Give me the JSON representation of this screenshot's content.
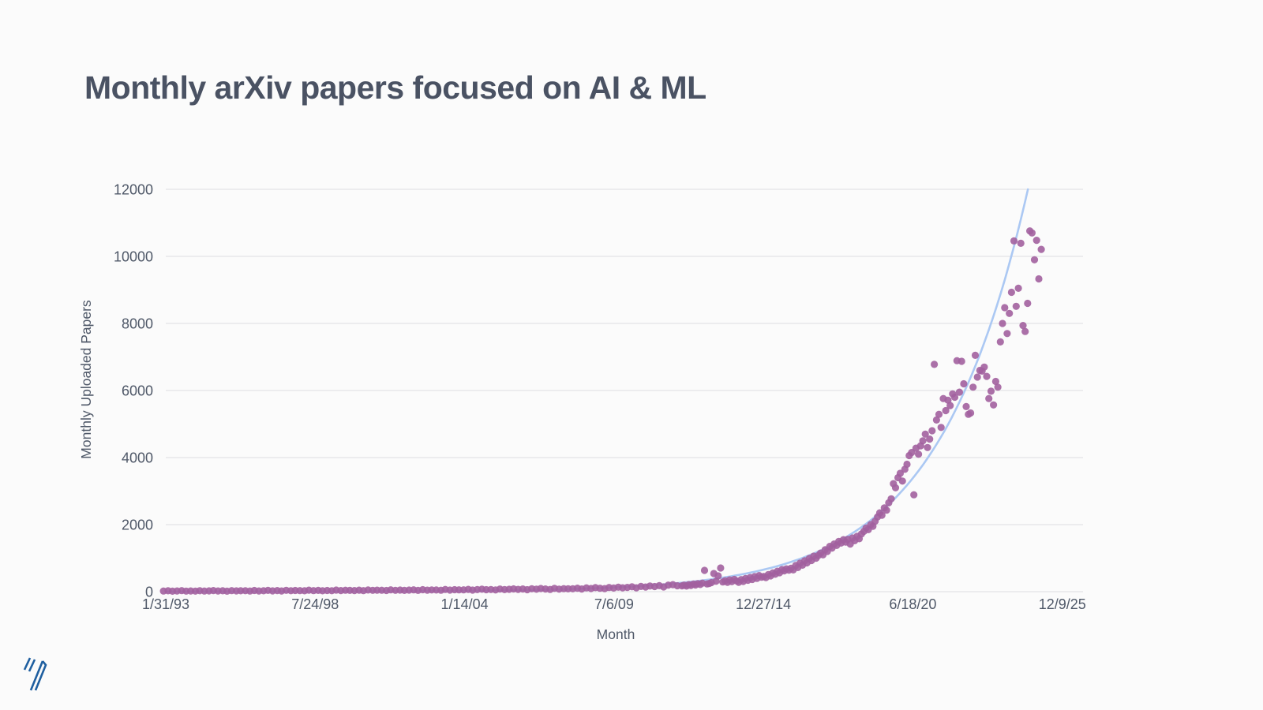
{
  "header": {
    "title": "Monthly arXiv papers focused on AI & ML"
  },
  "colors": {
    "background": "#fbfbfb",
    "title_text": "#4a5263",
    "axis_text": "#4f5868",
    "grid": "#e3e3e7",
    "dot": "#a2619e",
    "trend_line": "#abc8f3",
    "logo_blue": "#1f5fa0"
  },
  "logo": {
    "name": "brand-logo"
  },
  "chart_data": {
    "type": "scatter",
    "title": "Monthly arXiv papers focused on AI & ML",
    "xlabel": "Month",
    "ylabel": "Monthly Uploaded Papers",
    "grid": true,
    "legend": false,
    "x_range": [
      1993.085,
      2026.7
    ],
    "y_range": [
      0,
      12000
    ],
    "x_ticks": [
      {
        "label": "1/31/93",
        "t": 1993.085
      },
      {
        "label": "7/24/98",
        "t": 1998.561
      },
      {
        "label": "1/14/04",
        "t": 2004.037
      },
      {
        "label": "7/6/09",
        "t": 2009.512
      },
      {
        "label": "12/27/14",
        "t": 2014.988
      },
      {
        "label": "6/18/20",
        "t": 2020.464
      },
      {
        "label": "12/9/25",
        "t": 2025.94
      }
    ],
    "y_ticks": [
      0,
      2000,
      4000,
      6000,
      8000,
      10000,
      12000
    ],
    "trendline": {
      "type": "exponential",
      "formula": "papers = 12000 * exp(0.30 * (year - 2024.68))",
      "A": 12000,
      "k": 0.3,
      "t_ref": 2024.68
    },
    "series": [
      {
        "name": "Monthly uploaded papers",
        "type": "scatter",
        "points": [
          [
            1993,
            18
          ],
          [
            1993.17,
            25
          ],
          [
            1993.33,
            14
          ],
          [
            1993.5,
            22
          ],
          [
            1993.67,
            30
          ],
          [
            1993.83,
            17
          ],
          [
            1994,
            21
          ],
          [
            1994.17,
            16
          ],
          [
            1994.33,
            28
          ],
          [
            1994.5,
            19
          ],
          [
            1994.67,
            24
          ],
          [
            1994.83,
            33
          ],
          [
            1995,
            20
          ],
          [
            1995.17,
            27
          ],
          [
            1995.33,
            15
          ],
          [
            1995.5,
            31
          ],
          [
            1995.67,
            23
          ],
          [
            1995.83,
            26
          ],
          [
            1996,
            29
          ],
          [
            1996.17,
            18
          ],
          [
            1996.33,
            35
          ],
          [
            1996.5,
            22
          ],
          [
            1996.67,
            27
          ],
          [
            1996.83,
            38
          ],
          [
            1997,
            24
          ],
          [
            1997.17,
            33
          ],
          [
            1997.33,
            21
          ],
          [
            1997.5,
            40
          ],
          [
            1997.67,
            28
          ],
          [
            1997.83,
            35
          ],
          [
            1998,
            31
          ],
          [
            1998.17,
            26
          ],
          [
            1998.33,
            44
          ],
          [
            1998.5,
            30
          ],
          [
            1998.67,
            38
          ],
          [
            1998.83,
            27
          ],
          [
            1999,
            36
          ],
          [
            1999.17,
            29
          ],
          [
            1999.33,
            47
          ],
          [
            1999.5,
            33
          ],
          [
            1999.67,
            42
          ],
          [
            1999.83,
            38
          ],
          [
            2000,
            34
          ],
          [
            2000.17,
            45
          ],
          [
            2000.33,
            31
          ],
          [
            2000.5,
            50
          ],
          [
            2000.67,
            39
          ],
          [
            2000.83,
            44
          ],
          [
            2001,
            42
          ],
          [
            2001.17,
            36
          ],
          [
            2001.33,
            55
          ],
          [
            2001.5,
            41
          ],
          [
            2001.67,
            48
          ],
          [
            2001.83,
            37
          ],
          [
            2002,
            46
          ],
          [
            2002.17,
            53
          ],
          [
            2002.33,
            38
          ],
          [
            2002.5,
            60
          ],
          [
            2002.67,
            44
          ],
          [
            2002.83,
            52
          ],
          [
            2003,
            50
          ],
          [
            2003.17,
            43
          ],
          [
            2003.33,
            65
          ],
          [
            2003.5,
            48
          ],
          [
            2003.67,
            58
          ],
          [
            2003.83,
            54
          ],
          [
            2004,
            55
          ],
          [
            2004.17,
            68
          ],
          [
            2004.33,
            47
          ],
          [
            2004.5,
            62
          ],
          [
            2004.67,
            73
          ],
          [
            2004.83,
            58
          ],
          [
            2005,
            64
          ],
          [
            2005.17,
            52
          ],
          [
            2005.33,
            78
          ],
          [
            2005.5,
            61
          ],
          [
            2005.67,
            70
          ],
          [
            2005.83,
            83
          ],
          [
            2006,
            68
          ],
          [
            2006.17,
            81
          ],
          [
            2006.33,
            59
          ],
          [
            2006.5,
            88
          ],
          [
            2006.67,
            72
          ],
          [
            2006.83,
            95
          ],
          [
            2007,
            80
          ],
          [
            2007.17,
            67
          ],
          [
            2007.33,
            98
          ],
          [
            2007.5,
            76
          ],
          [
            2007.67,
            90
          ],
          [
            2007.83,
            84
          ],
          [
            2008,
            88
          ],
          [
            2008.17,
            104
          ],
          [
            2008.33,
            79
          ],
          [
            2008.5,
            112
          ],
          [
            2008.67,
            95
          ],
          [
            2008.83,
            120
          ],
          [
            2009,
            102
          ],
          [
            2009.17,
            92
          ],
          [
            2009.33,
            125
          ],
          [
            2009.5,
            108
          ],
          [
            2009.67,
            134
          ],
          [
            2009.83,
            116
          ],
          [
            2010,
            128
          ],
          [
            2010.17,
            145
          ],
          [
            2010.33,
            115
          ],
          [
            2010.5,
            156
          ],
          [
            2010.67,
            138
          ],
          [
            2010.83,
            170
          ],
          [
            2011,
            152
          ],
          [
            2011.17,
            180
          ],
          [
            2011.33,
            142
          ],
          [
            2011.5,
            195
          ],
          [
            2011.67,
            210
          ],
          [
            2011.83,
            176
          ],
          [
            2012,
            175
          ],
          [
            2012.08,
            195
          ],
          [
            2012.17,
            168
          ],
          [
            2012.25,
            210
          ],
          [
            2012.33,
            185
          ],
          [
            2012.42,
            225
          ],
          [
            2012.5,
            200
          ],
          [
            2012.58,
            240
          ],
          [
            2012.67,
            215
          ],
          [
            2012.75,
            255
          ],
          [
            2012.83,
            635
          ],
          [
            2012.92,
            230
          ],
          [
            2013,
            245
          ],
          [
            2013.08,
            270
          ],
          [
            2013.17,
            540
          ],
          [
            2013.25,
            310
          ],
          [
            2013.33,
            470
          ],
          [
            2013.42,
            705
          ],
          [
            2013.5,
            290
          ],
          [
            2013.58,
            325
          ],
          [
            2013.67,
            280
          ],
          [
            2013.75,
            350
          ],
          [
            2013.83,
            300
          ],
          [
            2013.92,
            365
          ],
          [
            2014,
            320
          ],
          [
            2014.08,
            280
          ],
          [
            2014.17,
            360
          ],
          [
            2014.25,
            305
          ],
          [
            2014.33,
            390
          ],
          [
            2014.42,
            340
          ],
          [
            2014.5,
            420
          ],
          [
            2014.58,
            365
          ],
          [
            2014.67,
            450
          ],
          [
            2014.75,
            395
          ],
          [
            2014.83,
            480
          ],
          [
            2014.92,
            430
          ],
          [
            2015,
            455
          ],
          [
            2015.08,
            420
          ],
          [
            2015.17,
            510
          ],
          [
            2015.25,
            470
          ],
          [
            2015.33,
            560
          ],
          [
            2015.42,
            520
          ],
          [
            2015.5,
            610
          ],
          [
            2015.58,
            565
          ],
          [
            2015.67,
            660
          ],
          [
            2015.75,
            620
          ],
          [
            2015.83,
            680
          ],
          [
            2015.92,
            640
          ],
          [
            2016,
            700
          ],
          [
            2016.08,
            650
          ],
          [
            2016.17,
            780
          ],
          [
            2016.25,
            720
          ],
          [
            2016.33,
            850
          ],
          [
            2016.42,
            790
          ],
          [
            2016.5,
            920
          ],
          [
            2016.58,
            860
          ],
          [
            2016.67,
            990
          ],
          [
            2016.75,
            930
          ],
          [
            2016.83,
            1060
          ],
          [
            2016.92,
            1000
          ],
          [
            2017,
            1080
          ],
          [
            2017.08,
            1150
          ],
          [
            2017.17,
            1100
          ],
          [
            2017.25,
            1250
          ],
          [
            2017.33,
            1200
          ],
          [
            2017.42,
            1350
          ],
          [
            2017.5,
            1300
          ],
          [
            2017.58,
            1420
          ],
          [
            2017.67,
            1380
          ],
          [
            2017.75,
            1500
          ],
          [
            2017.83,
            1450
          ],
          [
            2017.92,
            1550
          ],
          [
            2018,
            1480
          ],
          [
            2018.08,
            1560
          ],
          [
            2018.17,
            1420
          ],
          [
            2018.25,
            1600
          ],
          [
            2018.33,
            1520
          ],
          [
            2018.42,
            1650
          ],
          [
            2018.5,
            1580
          ],
          [
            2018.58,
            1720
          ],
          [
            2018.67,
            1800
          ],
          [
            2018.75,
            1900
          ],
          [
            2018.83,
            1850
          ],
          [
            2018.92,
            2000
          ],
          [
            2019,
            1950
          ],
          [
            2019.08,
            2100
          ],
          [
            2019.17,
            2230
          ],
          [
            2019.25,
            2350
          ],
          [
            2019.33,
            2280
          ],
          [
            2019.42,
            2500
          ],
          [
            2019.5,
            2430
          ],
          [
            2019.58,
            2650
          ],
          [
            2019.67,
            2770
          ],
          [
            2019.75,
            3220
          ],
          [
            2019.83,
            3100
          ],
          [
            2019.92,
            3400
          ],
          [
            2020,
            3530
          ],
          [
            2020.08,
            3300
          ],
          [
            2020.17,
            3650
          ],
          [
            2020.25,
            3800
          ],
          [
            2020.33,
            4060
          ],
          [
            2020.42,
            4150
          ],
          [
            2020.5,
            2890
          ],
          [
            2020.58,
            4280
          ],
          [
            2020.67,
            4100
          ],
          [
            2020.75,
            4350
          ],
          [
            2020.83,
            4500
          ],
          [
            2020.92,
            4700
          ],
          [
            2021,
            4300
          ],
          [
            2021.08,
            4550
          ],
          [
            2021.17,
            4800
          ],
          [
            2021.25,
            6780
          ],
          [
            2021.33,
            5120
          ],
          [
            2021.42,
            5290
          ],
          [
            2021.5,
            4900
          ],
          [
            2021.58,
            5760
          ],
          [
            2021.67,
            5400
          ],
          [
            2021.75,
            5710
          ],
          [
            2021.83,
            5550
          ],
          [
            2021.92,
            5900
          ],
          [
            2022,
            5800
          ],
          [
            2022.08,
            6890
          ],
          [
            2022.17,
            5950
          ],
          [
            2022.25,
            6870
          ],
          [
            2022.33,
            6200
          ],
          [
            2022.42,
            5520
          ],
          [
            2022.5,
            5290
          ],
          [
            2022.58,
            5330
          ],
          [
            2022.67,
            6100
          ],
          [
            2022.75,
            7050
          ],
          [
            2022.83,
            6400
          ],
          [
            2022.92,
            6600
          ],
          [
            2023,
            6580
          ],
          [
            2023.08,
            6700
          ],
          [
            2023.17,
            6420
          ],
          [
            2023.25,
            5760
          ],
          [
            2023.33,
            5980
          ],
          [
            2023.42,
            5570
          ],
          [
            2023.5,
            6270
          ],
          [
            2023.58,
            6100
          ],
          [
            2023.67,
            7450
          ],
          [
            2023.75,
            8000
          ],
          [
            2023.83,
            8470
          ],
          [
            2023.92,
            7700
          ],
          [
            2024,
            8300
          ],
          [
            2024.08,
            8930
          ],
          [
            2024.17,
            10460
          ],
          [
            2024.25,
            8510
          ],
          [
            2024.33,
            9050
          ],
          [
            2024.42,
            10390
          ],
          [
            2024.5,
            7940
          ],
          [
            2024.58,
            7760
          ],
          [
            2024.67,
            8600
          ],
          [
            2024.75,
            10760
          ],
          [
            2024.83,
            10700
          ],
          [
            2024.92,
            9900
          ],
          [
            2025,
            10480
          ],
          [
            2025.08,
            9330
          ],
          [
            2025.17,
            10210
          ]
        ]
      }
    ]
  }
}
